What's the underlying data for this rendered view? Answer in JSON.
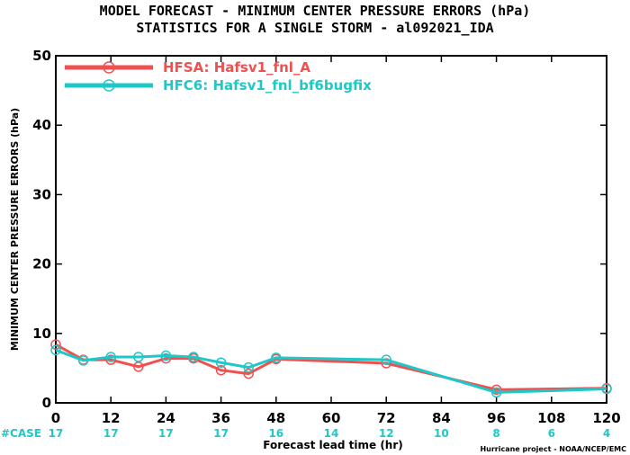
{
  "chart_data": {
    "type": "line",
    "title": "MODEL FORECAST - MINIMUM CENTER PRESSURE ERRORS (hPa)",
    "subtitle": "STATISTICS FOR A SINGLE STORM - al092021_IDA",
    "xlabel": "Forecast lead time (hr)",
    "ylabel": "MINIMUM CENTER PRESSURE ERRORS (hPa)",
    "credit": "Hurricane project - NOAA/NCEP/EMC",
    "xlim": [
      0,
      120
    ],
    "ylim": [
      0,
      50
    ],
    "x_ticks": [
      0,
      12,
      24,
      36,
      48,
      60,
      72,
      84,
      96,
      108,
      120
    ],
    "y_ticks": [
      0,
      10,
      20,
      30,
      40,
      50
    ],
    "grid": false,
    "legend_position": "top-left",
    "case_label": "#CASE",
    "case_counts": [
      "17",
      "17",
      "17",
      "17",
      "16",
      "14",
      "12",
      "10",
      "8",
      "6",
      "4"
    ],
    "series": [
      {
        "name": "HFSA: Hafsv1_fnl_A",
        "color": "#f0504f",
        "x": [
          0,
          6,
          12,
          18,
          24,
          30,
          36,
          42,
          48,
          72,
          96,
          120
        ],
        "y": [
          8.4,
          6.2,
          6.2,
          5.2,
          6.4,
          6.4,
          4.7,
          4.2,
          6.3,
          5.7,
          1.9,
          2.1
        ]
      },
      {
        "name": "HFC6: Hafsv1_fnl_bf6bugfix",
        "color": "#1ec8c8",
        "x": [
          0,
          6,
          12,
          18,
          24,
          30,
          36,
          42,
          48,
          72,
          96,
          120
        ],
        "y": [
          7.6,
          6.1,
          6.6,
          6.6,
          6.8,
          6.6,
          5.8,
          5.1,
          6.5,
          6.2,
          1.5,
          2.0
        ]
      }
    ]
  }
}
